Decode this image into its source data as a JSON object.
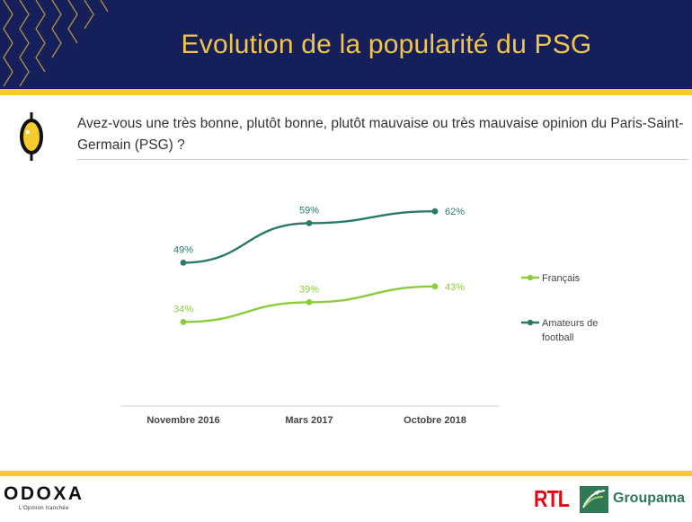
{
  "header": {
    "title": "Evolution de la popularité du PSG"
  },
  "question": {
    "text": "Avez-vous une très bonne, plutôt bonne, plutôt mauvaise ou très mauvaise opinion du Paris-Saint-Germain (PSG) ?"
  },
  "colors": {
    "header_bg": "#15205a",
    "accent_yellow": "#f5cc2e",
    "title_color": "#f1c44c",
    "series_francais": "#8ccc3c",
    "series_amateurs": "#2a7a6a"
  },
  "chart_data": {
    "type": "line",
    "categories": [
      "Novembre 2016",
      "Mars 2017",
      "Octobre 2018"
    ],
    "series": [
      {
        "name": "Français",
        "values": [
          34,
          39,
          43
        ],
        "labels": [
          "34%",
          "39%",
          "43%"
        ],
        "color": "#8ccc3c"
      },
      {
        "name": "Amateurs de football",
        "values": [
          49,
          59,
          62
        ],
        "labels": [
          "49%",
          "59%",
          "62%"
        ],
        "color": "#2a7a6a"
      }
    ],
    "ylim": [
      20,
      70
    ],
    "legend_position": "right",
    "grid": false,
    "xlabel": "",
    "ylabel": ""
  },
  "legend": [
    {
      "lines": [
        "Français"
      ]
    },
    {
      "lines": [
        "Amateurs de",
        "football"
      ]
    }
  ],
  "footer": {
    "odoxa_logo": "ODOXA",
    "odoxa_tagline": "L'Opinion tranchée",
    "rtl_logo": "RTL",
    "groupama_logo": "Groupama"
  }
}
